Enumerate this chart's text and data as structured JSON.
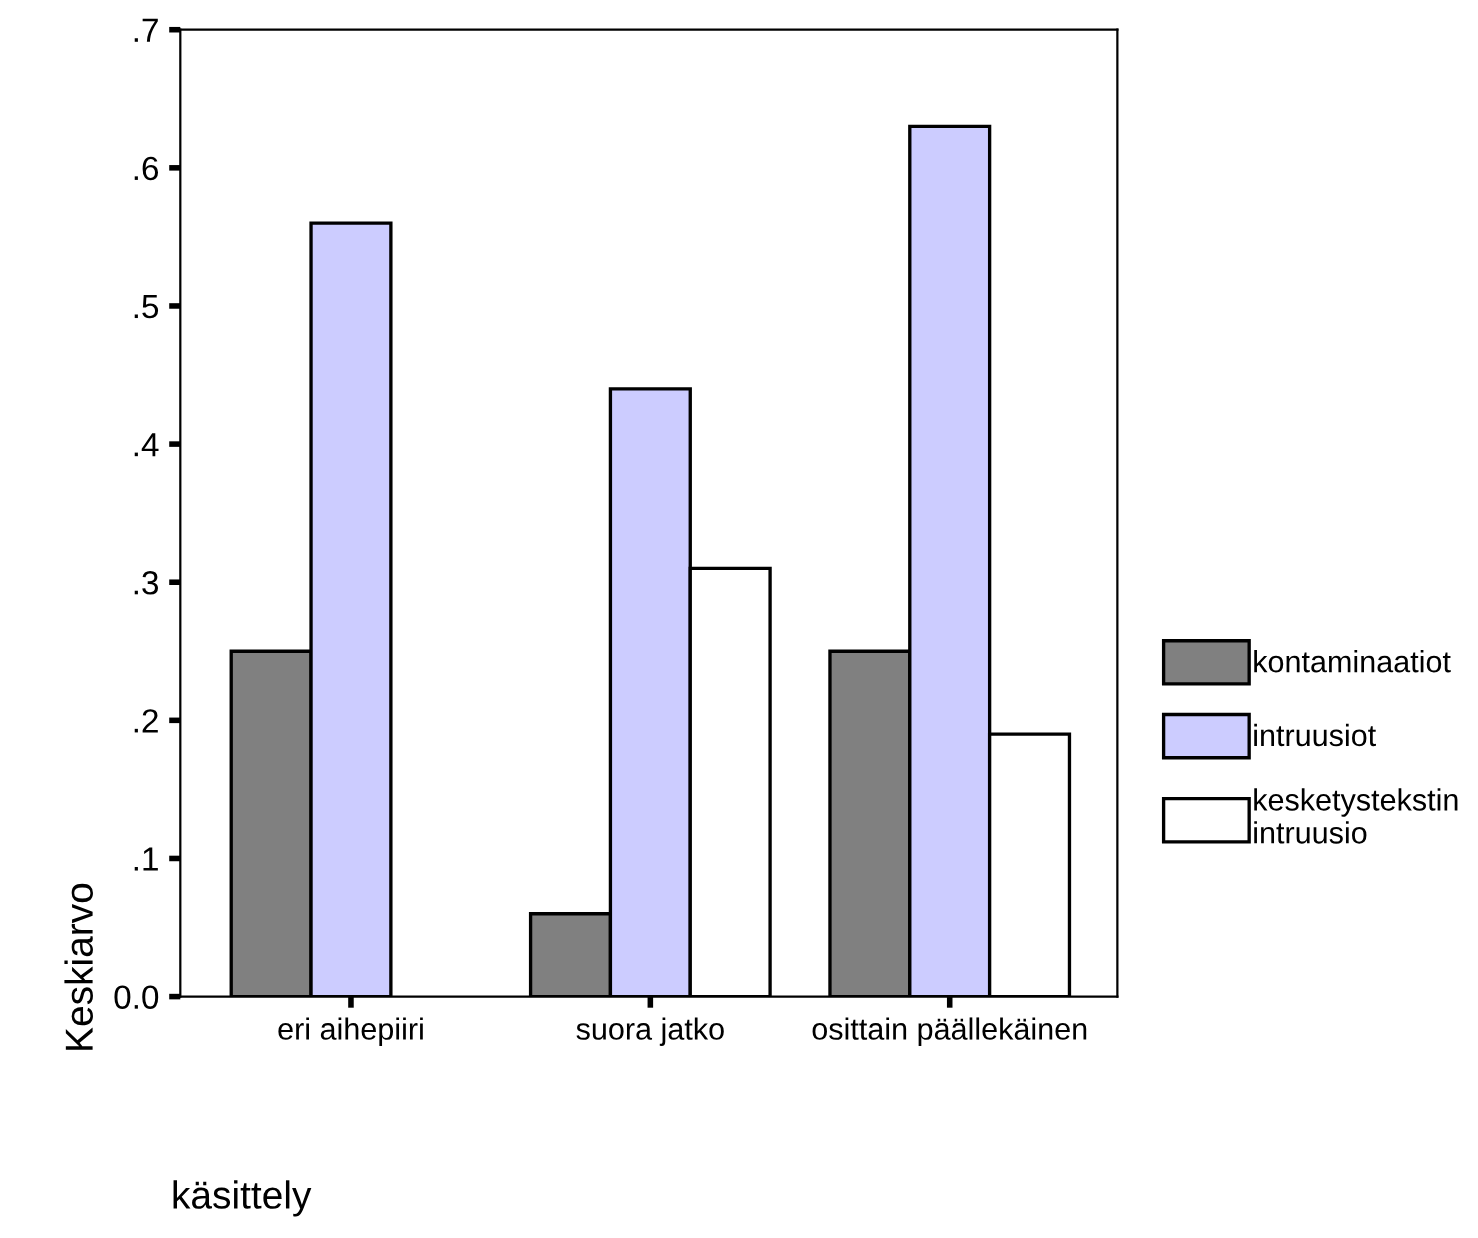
{
  "chart_data": {
    "type": "bar",
    "xlabel": "käsittely",
    "ylabel": "Keskiarvo",
    "categories": [
      "eri aihepiiri",
      "suora jatko",
      "osittain päällekäinen"
    ],
    "series": [
      {
        "name": "kontaminaatiot",
        "color": "#808080",
        "values": [
          0.25,
          0.06,
          0.25
        ]
      },
      {
        "name": "intruusiot",
        "color": "#ccccff",
        "values": [
          0.56,
          0.44,
          0.63
        ]
      },
      {
        "name": "kesketystekstin\nintruusio",
        "color": "#ffffff",
        "values": [
          null,
          0.31,
          0.19
        ]
      }
    ],
    "ylim": [
      0,
      0.7
    ],
    "yticks": [
      {
        "value": 0,
        "label": "0.0"
      },
      {
        "value": 0.1,
        "label": ".1"
      },
      {
        "value": 0.2,
        "label": ".2"
      },
      {
        "value": 0.3,
        "label": ".3"
      },
      {
        "value": 0.4,
        "label": ".4"
      },
      {
        "value": 0.5,
        "label": ".5"
      },
      {
        "value": 0.6,
        "label": ".6"
      },
      {
        "value": 0.7,
        "label": ".7"
      }
    ],
    "grid": false,
    "legend": "right"
  }
}
